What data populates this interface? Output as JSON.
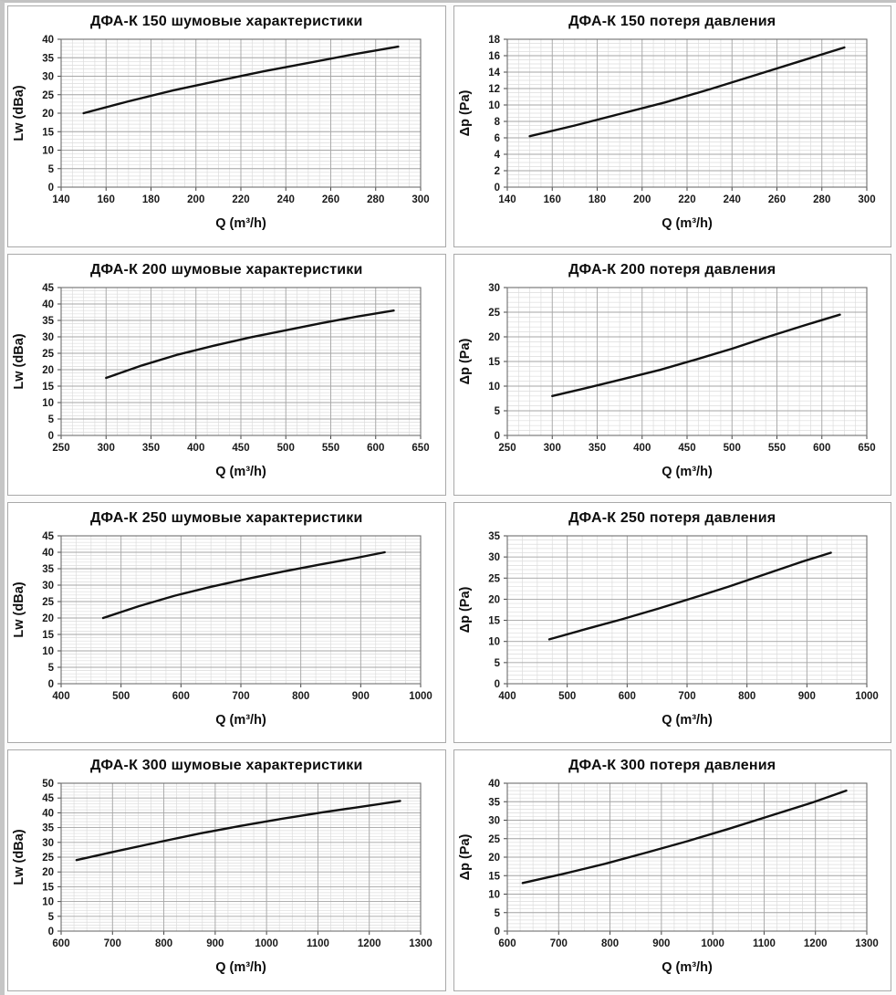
{
  "page": {
    "background_color": "#fbfbfb",
    "panel_border_color": "#a9a9a9",
    "grid_minor_color": "#dcdcdc",
    "grid_major_color": "#a6a6a6",
    "plot_border_color": "#6e6e6e",
    "curve_color": "#111111",
    "text_color": "#0d0d0d"
  },
  "chart_data": [
    {
      "type": "line",
      "title": "ДФА-К 150 шумовые характеристики",
      "xlabel": "Q (m³/h)",
      "ylabel": "Lw (dBa)",
      "xlim": [
        140,
        300
      ],
      "xstep": 20,
      "x_minor_div": 4,
      "ylim": [
        0,
        40
      ],
      "ystep": 5,
      "y_minor_div": 5,
      "grid": true,
      "legend": "none",
      "x": [
        150,
        170,
        190,
        210,
        230,
        250,
        270,
        290
      ],
      "y": [
        20,
        23.2,
        26.2,
        28.8,
        31.3,
        33.6,
        35.9,
        38
      ]
    },
    {
      "type": "line",
      "title": "ДФА-К 150 потеря давления",
      "xlabel": "Q (m³/h)",
      "ylabel": "Δp (Pa)",
      "xlim": [
        140,
        300
      ],
      "xstep": 20,
      "x_minor_div": 4,
      "ylim": [
        0,
        18
      ],
      "ystep": 2,
      "y_minor_div": 4,
      "grid": true,
      "legend": "none",
      "x": [
        150,
        170,
        190,
        210,
        230,
        250,
        270,
        290
      ],
      "y": [
        6.2,
        7.5,
        8.9,
        10.3,
        11.9,
        13.6,
        15.3,
        17
      ]
    },
    {
      "type": "line",
      "title": "ДФА-К 200 шумовые характеристики",
      "xlabel": "Q (m³/h)",
      "ylabel": "Lw (dBa)",
      "xlim": [
        250,
        650
      ],
      "xstep": 50,
      "x_minor_div": 4,
      "ylim": [
        0,
        45
      ],
      "ystep": 5,
      "y_minor_div": 5,
      "grid": true,
      "legend": "none",
      "x": [
        300,
        340,
        380,
        420,
        460,
        500,
        540,
        580,
        620
      ],
      "y": [
        17.5,
        21.3,
        24.6,
        27.3,
        29.8,
        32,
        34.2,
        36.2,
        38
      ]
    },
    {
      "type": "line",
      "title": "ДФА-К 200 потеря давления",
      "xlabel": "Q (m³/h)",
      "ylabel": "Δp (Pa)",
      "xlim": [
        250,
        650
      ],
      "xstep": 50,
      "x_minor_div": 4,
      "ylim": [
        0,
        30
      ],
      "ystep": 5,
      "y_minor_div": 5,
      "grid": true,
      "legend": "none",
      "x": [
        300,
        340,
        380,
        420,
        460,
        500,
        540,
        580,
        620
      ],
      "y": [
        8,
        9.7,
        11.5,
        13.3,
        15.4,
        17.6,
        20,
        22.3,
        24.5
      ]
    },
    {
      "type": "line",
      "title": "ДФА-К 250 шумовые характеристики",
      "xlabel": "Q (m³/h)",
      "ylabel": "Lw (dBa)",
      "xlim": [
        400,
        1000
      ],
      "xstep": 100,
      "x_minor_div": 4,
      "ylim": [
        0,
        45
      ],
      "ystep": 5,
      "y_minor_div": 5,
      "grid": true,
      "legend": "none",
      "x": [
        470,
        530,
        590,
        650,
        710,
        770,
        830,
        890,
        940
      ],
      "y": [
        20,
        23.6,
        26.8,
        29.5,
        31.9,
        34.1,
        36.2,
        38.2,
        40
      ]
    },
    {
      "type": "line",
      "title": "ДФА-К 250 потеря давления",
      "xlabel": "Q (m³/h)",
      "ylabel": "Δp (Pa)",
      "xlim": [
        400,
        1000
      ],
      "xstep": 100,
      "x_minor_div": 4,
      "ylim": [
        0,
        35
      ],
      "ystep": 5,
      "y_minor_div": 5,
      "grid": true,
      "legend": "none",
      "x": [
        470,
        530,
        590,
        650,
        710,
        770,
        830,
        890,
        940
      ],
      "y": [
        10.5,
        12.9,
        15.2,
        17.7,
        20.3,
        23,
        25.9,
        28.8,
        31
      ]
    },
    {
      "type": "line",
      "title": "ДФА-К 300 шумовые характеристики",
      "xlabel": "Q (m³/h)",
      "ylabel": "Lw (dBa)",
      "xlim": [
        600,
        1300
      ],
      "xstep": 100,
      "x_minor_div": 4,
      "ylim": [
        0,
        50
      ],
      "ystep": 5,
      "y_minor_div": 5,
      "grid": true,
      "legend": "none",
      "x": [
        630,
        710,
        790,
        870,
        950,
        1030,
        1110,
        1190,
        1260
      ],
      "y": [
        24,
        27.1,
        30.1,
        33,
        35.6,
        38,
        40.2,
        42.2,
        44
      ]
    },
    {
      "type": "line",
      "title": "ДФА-К 300 потеря давления",
      "xlabel": "Q (m³/h)",
      "ylabel": "Δp (Pa)",
      "xlim": [
        600,
        1300
      ],
      "xstep": 100,
      "x_minor_div": 4,
      "ylim": [
        0,
        40
      ],
      "ystep": 5,
      "y_minor_div": 5,
      "grid": true,
      "legend": "none",
      "x": [
        630,
        710,
        790,
        870,
        950,
        1030,
        1110,
        1190,
        1260
      ],
      "y": [
        13,
        15.5,
        18.2,
        21.2,
        24.3,
        27.6,
        31.1,
        34.6,
        38
      ]
    }
  ]
}
